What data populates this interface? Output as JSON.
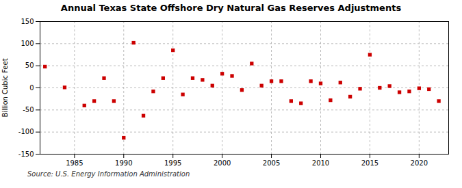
{
  "chart_data": {
    "type": "scatter",
    "title": "Annual Texas State Offshore Dry Natural Gas Reserves Adjustments",
    "ylabel": "Billion Cubic Feet",
    "source": "Source: U.S. Energy Information Administration",
    "x": [
      1982,
      1984,
      1986,
      1987,
      1988,
      1989,
      1990,
      1991,
      1992,
      1993,
      1994,
      1995,
      1996,
      1997,
      1998,
      1999,
      2000,
      2001,
      2002,
      2003,
      2004,
      2005,
      2006,
      2007,
      2008,
      2009,
      2010,
      2011,
      2012,
      2013,
      2014,
      2015,
      2016,
      2017,
      2018,
      2019,
      2020,
      2021,
      2022
    ],
    "values": [
      48,
      1,
      -40,
      -30,
      22,
      -30,
      -113,
      102,
      -63,
      -8,
      22,
      85,
      -15,
      22,
      18,
      5,
      32,
      27,
      -5,
      55,
      5,
      15,
      15,
      -30,
      -35,
      15,
      10,
      -28,
      12,
      -20,
      -2,
      75,
      0,
      4,
      -10,
      -8,
      -1,
      -3,
      -30
    ],
    "xlim": [
      1981.5,
      2023
    ],
    "ylim": [
      -150,
      150
    ],
    "xticks": [
      1985,
      1990,
      1995,
      2000,
      2005,
      2010,
      2015,
      2020
    ],
    "yticks": [
      -150,
      -100,
      -50,
      0,
      50,
      100,
      150
    ],
    "color": "#cc0000",
    "marker": "square",
    "grid": true
  }
}
